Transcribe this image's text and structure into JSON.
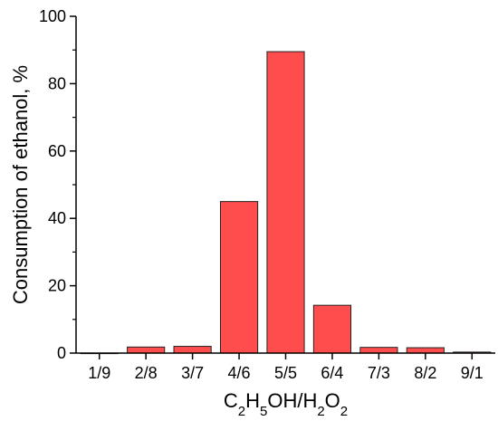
{
  "chart_data": {
    "type": "bar",
    "categories": [
      "1/9",
      "2/8",
      "3/7",
      "4/6",
      "5/5",
      "6/4",
      "7/3",
      "8/2",
      "9/1"
    ],
    "values": [
      0,
      1.8,
      2.0,
      45.0,
      89.5,
      14.2,
      1.7,
      1.6,
      0.3
    ],
    "ylabel": "Consumption of ethanol, %",
    "xlabel_parts": [
      {
        "t": "C",
        "sub": false
      },
      {
        "t": "2",
        "sub": true
      },
      {
        "t": "H",
        "sub": false
      },
      {
        "t": "5",
        "sub": true
      },
      {
        "t": "OH/H",
        "sub": false
      },
      {
        "t": "2",
        "sub": true
      },
      {
        "t": "O",
        "sub": false
      },
      {
        "t": "2",
        "sub": true
      }
    ],
    "ylim": [
      0,
      100
    ],
    "yticks": [
      "0",
      "20",
      "40",
      "60",
      "80",
      "100"
    ],
    "bar_color": "#ff4d4d",
    "bar_edge_color": "#222222",
    "grid": false,
    "legend": "none"
  }
}
